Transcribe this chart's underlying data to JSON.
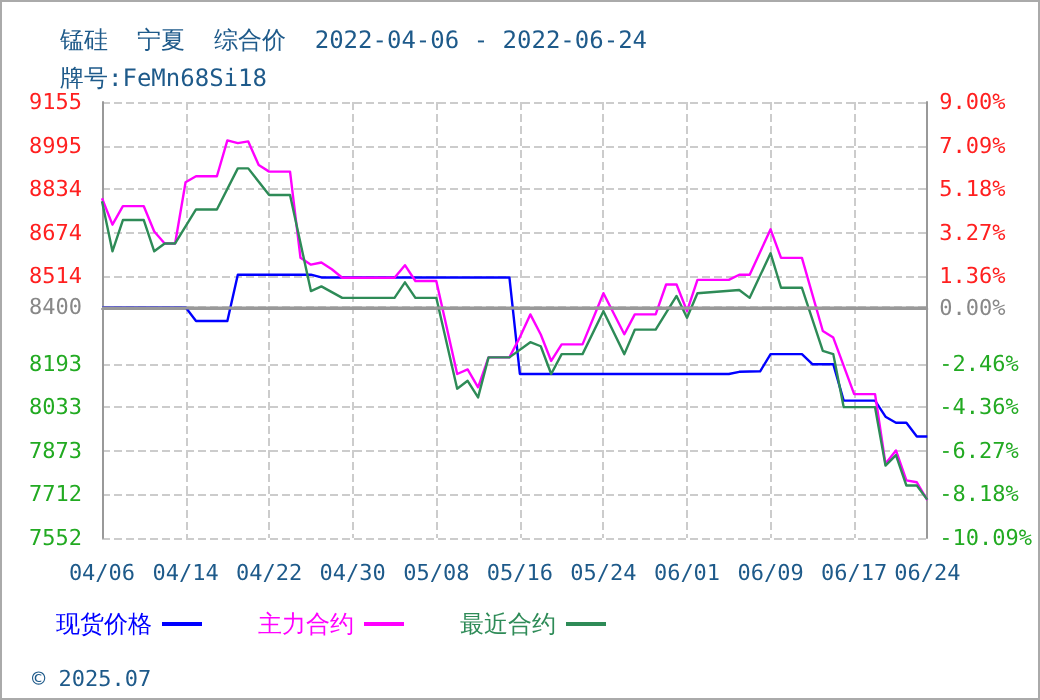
{
  "chart_data": {
    "type": "line",
    "title": "锰硅  宁夏  综合价  2022-04-06 - 2022-06-24",
    "subtitle": "牌号:FeMn68Si18",
    "annotations": [
      "© 2025.07"
    ],
    "series": [
      {
        "name": "现货价格",
        "color": "#0000ff",
        "x": [
          "2022-04-06",
          "2022-04-14",
          "2022-04-15",
          "2022-04-18",
          "2022-04-19",
          "2022-04-26",
          "2022-04-27",
          "2022-05-15",
          "2022-05-16",
          "2022-06-05",
          "2022-06-06",
          "2022-06-08",
          "2022-06-09",
          "2022-06-12",
          "2022-06-13",
          "2022-06-15",
          "2022-06-16",
          "2022-06-19",
          "2022-06-20",
          "2022-06-21",
          "2022-06-22",
          "2022-06-23",
          "2022-06-24"
        ],
        "values": [
          8400,
          8400,
          8350,
          8350,
          8520,
          8520,
          8510,
          8510,
          8155,
          8155,
          8163,
          8165,
          8228,
          8228,
          8191,
          8191,
          8057,
          8057,
          7998,
          7976,
          7976,
          7925,
          7925
        ]
      },
      {
        "name": "主力合约",
        "color": "#ff00ff",
        "x": [
          "2022-04-06",
          "2022-04-07",
          "2022-04-08",
          "2022-04-10",
          "2022-04-11",
          "2022-04-12",
          "2022-04-13",
          "2022-04-14",
          "2022-04-15",
          "2022-04-17",
          "2022-04-18",
          "2022-04-19",
          "2022-04-20",
          "2022-04-21",
          "2022-04-22",
          "2022-04-24",
          "2022-04-25",
          "2022-04-26",
          "2022-04-27",
          "2022-04-28",
          "2022-04-29",
          "2022-05-04",
          "2022-05-05",
          "2022-05-06",
          "2022-05-08",
          "2022-05-10",
          "2022-05-11",
          "2022-05-12",
          "2022-05-13",
          "2022-05-15",
          "2022-05-16",
          "2022-05-17",
          "2022-05-18",
          "2022-05-19",
          "2022-05-20",
          "2022-05-22",
          "2022-05-24",
          "2022-05-26",
          "2022-05-27",
          "2022-05-29",
          "2022-05-30",
          "2022-05-31",
          "2022-06-01",
          "2022-06-02",
          "2022-06-05",
          "2022-06-06",
          "2022-06-07",
          "2022-06-09",
          "2022-06-10",
          "2022-06-12",
          "2022-06-14",
          "2022-06-15",
          "2022-06-17",
          "2022-06-19",
          "2022-06-20",
          "2022-06-21",
          "2022-06-22",
          "2022-06-23",
          "2022-06-24"
        ],
        "values": [
          8801,
          8704,
          8772,
          8772,
          8679,
          8635,
          8635,
          8860,
          8882,
          8882,
          9014,
          9004,
          9010,
          8923,
          8899,
          8899,
          8582,
          8557,
          8565,
          8540,
          8509,
          8509,
          8555,
          8497,
          8497,
          8155,
          8172,
          8106,
          8216,
          8216,
          8290,
          8374,
          8300,
          8203,
          8264,
          8264,
          8452,
          8301,
          8374,
          8374,
          8484,
          8484,
          8386,
          8501,
          8501,
          8520,
          8520,
          8687,
          8582,
          8582,
          8313,
          8289,
          8081,
          8081,
          7825,
          7874,
          7764,
          7757,
          7691
        ]
      },
      {
        "name": "最近合约",
        "color": "#2e8b57",
        "x": [
          "2022-04-06",
          "2022-04-07",
          "2022-04-08",
          "2022-04-10",
          "2022-04-11",
          "2022-04-12",
          "2022-04-13",
          "2022-04-15",
          "2022-04-17",
          "2022-04-19",
          "2022-04-20",
          "2022-04-22",
          "2022-04-24",
          "2022-04-26",
          "2022-04-27",
          "2022-04-29",
          "2022-05-04",
          "2022-05-05",
          "2022-05-06",
          "2022-05-08",
          "2022-05-10",
          "2022-05-11",
          "2022-05-12",
          "2022-05-13",
          "2022-05-15",
          "2022-05-17",
          "2022-05-18",
          "2022-05-19",
          "2022-05-20",
          "2022-05-22",
          "2022-05-24",
          "2022-05-26",
          "2022-05-27",
          "2022-05-29",
          "2022-05-31",
          "2022-06-01",
          "2022-06-02",
          "2022-06-06",
          "2022-06-07",
          "2022-06-09",
          "2022-06-10",
          "2022-06-12",
          "2022-06-14",
          "2022-06-15",
          "2022-06-16",
          "2022-06-19",
          "2022-06-20",
          "2022-06-21",
          "2022-06-22",
          "2022-06-23",
          "2022-06-24"
        ],
        "values": [
          8790,
          8606,
          8721,
          8721,
          8606,
          8635,
          8635,
          8760,
          8760,
          8911,
          8911,
          8813,
          8813,
          8460,
          8477,
          8435,
          8435,
          8492,
          8435,
          8435,
          8101,
          8130,
          8069,
          8216,
          8216,
          8272,
          8257,
          8155,
          8228,
          8228,
          8386,
          8228,
          8318,
          8318,
          8442,
          8362,
          8452,
          8464,
          8435,
          8599,
          8472,
          8472,
          8240,
          8228,
          8033,
          8033,
          7818,
          7857,
          7745,
          7745,
          7693
        ]
      }
    ],
    "xlim": [
      "2022-04-06",
      "2022-06-24"
    ],
    "xticks": [
      {
        "value": "2022-04-06",
        "label": "04/06"
      },
      {
        "value": "2022-04-14",
        "label": "04/14"
      },
      {
        "value": "2022-04-22",
        "label": "04/22"
      },
      {
        "value": "2022-04-30",
        "label": "04/30"
      },
      {
        "value": "2022-05-08",
        "label": "05/08"
      },
      {
        "value": "2022-05-16",
        "label": "05/16"
      },
      {
        "value": "2022-05-24",
        "label": "05/24"
      },
      {
        "value": "2022-06-01",
        "label": "06/01"
      },
      {
        "value": "2022-06-09",
        "label": "06/09"
      },
      {
        "value": "2022-06-17",
        "label": "06/17"
      },
      {
        "value": "2022-06-24",
        "label": "06/24"
      }
    ],
    "ylim": [
      7552,
      9155
    ],
    "yticks": [
      7552,
      7712,
      7873,
      8033,
      8193,
      8400,
      8514,
      8674,
      8834,
      8995,
      9155
    ],
    "y2lim": [
      -10.09,
      9.0
    ],
    "y2ticks": [
      {
        "value": -10.09,
        "label": "-10.09%"
      },
      {
        "value": -8.18,
        "label": "-8.18%"
      },
      {
        "value": -6.27,
        "label": "-6.27%"
      },
      {
        "value": -4.36,
        "label": "-4.36%"
      },
      {
        "value": -2.46,
        "label": "-2.46%"
      },
      {
        "value": 0,
        "label": "0.00%"
      },
      {
        "value": 1.36,
        "label": "1.36%"
      },
      {
        "value": 3.27,
        "label": "3.27%"
      },
      {
        "value": 5.18,
        "label": "5.18%"
      },
      {
        "value": 7.09,
        "label": "7.09%"
      },
      {
        "value": 9.0,
        "label": "9.00%"
      }
    ],
    "ref_lines": [
      {
        "axis": "y",
        "value": 8400,
        "color": "#999999"
      }
    ],
    "grid": true,
    "legend": "bottom left",
    "marker": "none",
    "line_style": "solid"
  }
}
